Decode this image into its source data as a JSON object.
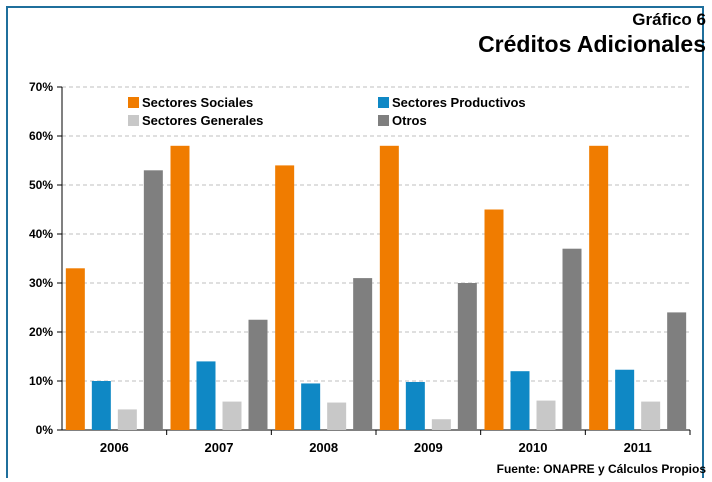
{
  "header": {
    "subtitle": "Gráfico 6",
    "title": "Créditos Adicionales"
  },
  "source": "Fuente: ONAPRE y Cálculos Propios",
  "colors": {
    "frame": "#1f6f9c",
    "grid": "#bfbfbf"
  },
  "chart_data": {
    "type": "bar",
    "title": "Créditos Adicionales",
    "subtitle": "Gráfico 6",
    "categories": [
      "2006",
      "2007",
      "2008",
      "2009",
      "2010",
      "2011"
    ],
    "ylim": [
      0,
      70
    ],
    "y_ticks": [
      0,
      10,
      20,
      30,
      40,
      50,
      60,
      70
    ],
    "y_tick_labels": [
      "0%",
      "10%",
      "20%",
      "30%",
      "40%",
      "50%",
      "60%",
      "70%"
    ],
    "y_unit": "%",
    "grid": "horizontal dashed",
    "legend_position": "top-left",
    "series": [
      {
        "name": "Sectores Sociales",
        "color": "#f07c00",
        "values": [
          33,
          58,
          54,
          58,
          45,
          58
        ]
      },
      {
        "name": "Sectores Productivos",
        "color": "#0f88c5",
        "values": [
          10,
          14,
          9.5,
          9.8,
          12,
          12.3
        ]
      },
      {
        "name": "Sectores Generales",
        "color": "#c8c8c8",
        "values": [
          4.2,
          5.8,
          5.6,
          2.2,
          6,
          5.8
        ]
      },
      {
        "name": "Otros",
        "color": "#7f7f7f",
        "values": [
          53,
          22.5,
          31,
          30,
          37,
          24
        ]
      }
    ]
  }
}
